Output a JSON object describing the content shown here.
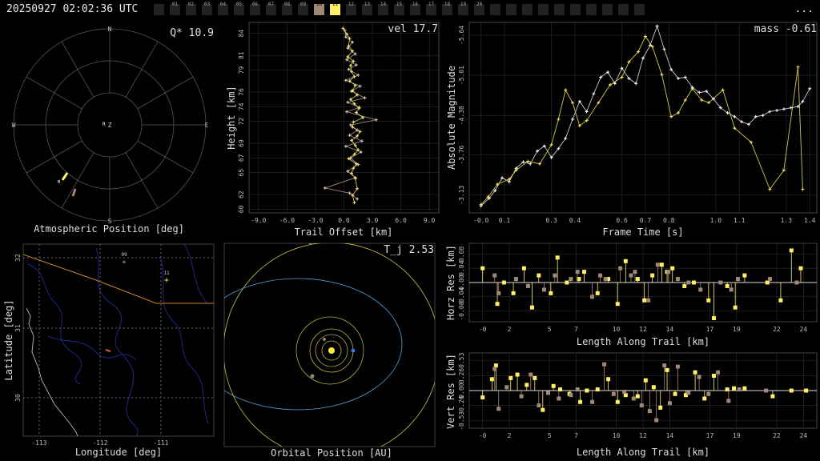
{
  "header": {
    "timestamp": "20250927 02:02:36 UTC",
    "menu_label": "...",
    "cameras": [
      "",
      "01",
      "02",
      "03",
      "04",
      "05",
      "06",
      "07",
      "08",
      "09",
      "10",
      "11",
      "12",
      "13",
      "14",
      "15",
      "16",
      "17",
      "18",
      "19",
      "20",
      "",
      "",
      "",
      "",
      "",
      "",
      "",
      "",
      "",
      ""
    ],
    "active_camera": "11",
    "hit_camera": "10"
  },
  "colors": {
    "accent": "#ffee66",
    "secondary": "#a08878",
    "grid": "#333",
    "axis": "#888",
    "text": "#dddddd"
  },
  "polar": {
    "label": "Atmospheric Position [deg]",
    "value_label": "Q* 10.9",
    "compass": {
      "n": "N",
      "s": "S",
      "e": "E",
      "w": "W",
      "z": "Z",
      "r": "R",
      "m": "M"
    }
  },
  "height": {
    "label": "Trail Offset [km]",
    "ylabel": "Height [km]",
    "value_label": "vel 17.7",
    "xticks": [
      "-9.0",
      "-6.0",
      "-3.0",
      "0.0",
      "3.0",
      "6.0",
      "9.0"
    ],
    "yticks": [
      "60",
      "62",
      "65",
      "67",
      "69",
      "72",
      "74",
      "76",
      "79",
      "81",
      "84"
    ]
  },
  "light": {
    "label": "Frame Time [s]",
    "ylabel": "Absolute Magnitude",
    "value_label": "mass -0.61",
    "xticks": [
      "-0.0",
      "0.1",
      "0.3",
      "0.4",
      "0.6",
      "0.7",
      "0.8",
      "1.0",
      "1.1",
      "1.3",
      "1.4"
    ],
    "yticks": [
      "-5.64",
      "-5.01",
      "-4.38",
      "-3.76",
      "-3.13"
    ]
  },
  "map": {
    "label": "Longitude [deg]",
    "ylabel": "Latitude [deg]",
    "xticks": [
      "-113",
      "-112",
      "-111"
    ],
    "yticks": [
      "32",
      "31",
      "30"
    ],
    "cams": [
      "09",
      "11"
    ]
  },
  "orbit": {
    "label": "Orbital Position [AU]",
    "value_label": "T_j 2.53"
  },
  "horz": {
    "label": "Length Along Trail [km]",
    "ylabel": "Horz Res [km]",
    "yticks": [
      "0.08",
      "0.04",
      "0.00",
      "-0.04",
      "-0.08"
    ]
  },
  "vert": {
    "label": "Length Along Trail [km]",
    "ylabel": "Vert Res [km]",
    "yticks": [
      "0.53",
      "0.26",
      "0.00",
      "-0.26",
      "-0.53"
    ]
  },
  "residual_xticks": [
    "-0",
    "2",
    "5",
    "7",
    "10",
    "12",
    "14",
    "17",
    "19",
    "22",
    "24"
  ],
  "chart_data": [
    {
      "type": "scatter",
      "title": "",
      "value_label": "vel 17.7",
      "xlabel": "Trail Offset [km]",
      "ylabel": "Height [km]",
      "xlim": [
        -10,
        10
      ],
      "ylim": [
        59.5,
        85.5
      ],
      "series": [
        {
          "x": [
            -0.1,
            0.3,
            0.6,
            0.5,
            0.9,
            0.4,
            1.0,
            0.7,
            0.8,
            1.1,
            0.6,
            1.2,
            0.9,
            1.4,
            0.7,
            1.1,
            1.6,
            1.3,
            2.0,
            1.0,
            0.9,
            1.7,
            1.4,
            0.8,
            1.2,
            1.5,
            1.1,
            0.5,
            1.3,
            1.0,
            0.8,
            1.2,
            1.4,
            0.9,
            1.1
          ],
          "y": [
            84.7,
            83.9,
            83.3,
            82.3,
            81.6,
            80.8,
            80.2,
            79.6,
            78.8,
            78.1,
            77.5,
            76.9,
            76.2,
            75.6,
            75.0,
            74.4,
            73.8,
            73.2,
            72.5,
            71.9,
            71.2,
            70.6,
            70.0,
            69.4,
            68.7,
            68.1,
            67.5,
            66.9,
            66.2,
            65.6,
            64.9,
            64.2,
            62.8,
            61.9,
            60.9
          ]
        },
        {
          "x": [
            0.1,
            0.2,
            0.9,
            0.4,
            1.2,
            0.3,
            1.3,
            0.5,
            1.5,
            0.2,
            1.7,
            0.8,
            2.2,
            0.4,
            1.6,
            0.3,
            3.4,
            0.7,
            1.4,
            0.6,
            1.9,
            0.2,
            1.8,
            0.7,
            1.5,
            0.4,
            1.2,
            -2.0,
            0.6,
            1.4
          ],
          "y": [
            84.4,
            83.5,
            82.8,
            82.0,
            81.2,
            80.4,
            79.7,
            79.1,
            78.3,
            77.6,
            76.8,
            76.1,
            75.2,
            74.6,
            73.9,
            73.3,
            72.2,
            71.5,
            70.8,
            70.1,
            69.3,
            68.6,
            67.8,
            67.0,
            66.1,
            65.2,
            64.3,
            62.9,
            62.2,
            61.4
          ]
        }
      ]
    },
    {
      "type": "line",
      "title": "",
      "value_label": "mass -0.61",
      "xlabel": "Frame Time [s]",
      "ylabel": "Absolute Magnitude",
      "xlim": [
        -0.05,
        1.43
      ],
      "ylim": [
        -2.85,
        -5.84
      ],
      "series": [
        {
          "x": [
            0,
            0.035,
            0.06,
            0.09,
            0.12,
            0.15,
            0.18,
            0.21,
            0.24,
            0.27,
            0.3,
            0.33,
            0.36,
            0.39,
            0.42,
            0.45,
            0.48,
            0.51,
            0.54,
            0.57,
            0.6,
            0.63,
            0.66,
            0.69,
            0.72,
            0.75,
            0.78,
            0.81,
            0.84,
            0.87,
            0.9,
            0.93,
            0.96,
            0.99,
            1.02,
            1.05,
            1.08,
            1.11,
            1.14,
            1.17,
            1.2,
            1.23,
            1.26,
            1.29,
            1.32,
            1.35,
            1.37,
            1.4
          ],
          "y": [
            -2.96,
            -3.08,
            -3.2,
            -3.4,
            -3.34,
            -3.55,
            -3.65,
            -3.62,
            -3.82,
            -3.9,
            -3.72,
            -3.86,
            -4.02,
            -4.32,
            -4.6,
            -4.44,
            -4.72,
            -4.98,
            -5.06,
            -4.88,
            -5.12,
            -4.96,
            -4.88,
            -5.28,
            -5.48,
            -5.78,
            -5.42,
            -5.1,
            -4.96,
            -4.98,
            -4.82,
            -4.74,
            -4.76,
            -4.64,
            -4.5,
            -4.42,
            -4.36,
            -4.28,
            -4.24,
            -4.36,
            -4.38,
            -4.44,
            -4.46,
            -4.48,
            -4.5,
            -4.52,
            -4.6,
            -4.8
          ]
        },
        {
          "x": [
            0,
            0.03,
            0.07,
            0.12,
            0.15,
            0.2,
            0.25,
            0.3,
            0.33,
            0.36,
            0.39,
            0.42,
            0.45,
            0.5,
            0.55,
            0.6,
            0.63,
            0.67,
            0.7,
            0.73,
            0.77,
            0.81,
            0.84,
            0.87,
            0.9,
            0.94,
            0.97,
            1.03,
            1.08,
            1.15,
            1.23,
            1.29,
            1.35,
            1.37
          ],
          "y": [
            -2.98,
            -3.1,
            -3.3,
            -3.38,
            -3.52,
            -3.66,
            -3.62,
            -3.92,
            -4.32,
            -4.78,
            -4.58,
            -4.22,
            -4.3,
            -4.58,
            -4.86,
            -4.98,
            -5.22,
            -5.38,
            -5.62,
            -5.46,
            -5.02,
            -4.36,
            -4.42,
            -4.62,
            -4.8,
            -4.62,
            -4.58,
            -4.78,
            -4.18,
            -3.96,
            -3.22,
            -3.52,
            -5.14,
            -3.22
          ]
        }
      ]
    },
    {
      "type": "scatter",
      "title": "",
      "xlabel": "Length Along Trail [km]",
      "ylabel": "Horz Res [km]",
      "xlim": [
        -1,
        25
      ],
      "ylim": [
        -0.11,
        0.11
      ],
      "series": [
        {
          "x": [
            0,
            1.1,
            1.6,
            2.3,
            3.1,
            3.7,
            4.2,
            5.1,
            5.6,
            6.3,
            7.2,
            7.6,
            8.6,
            9.4,
            10.1,
            10.7,
            11.6,
            12.1,
            12.7,
            13.4,
            13.8,
            14.2,
            15.1,
            15.8,
            16.9,
            17.3,
            18.3,
            18.9,
            19.6,
            21.3,
            22.3,
            23.1,
            23.8
          ],
          "y": [
            0.04,
            -0.06,
            0.0,
            -0.03,
            0.04,
            -0.07,
            0.02,
            -0.03,
            0.07,
            0.0,
            0.01,
            0.03,
            -0.03,
            0.01,
            -0.06,
            0.06,
            0.01,
            -0.05,
            0.02,
            0.05,
            0.03,
            0.04,
            -0.01,
            0.0,
            -0.05,
            -0.1,
            -0.01,
            -0.07,
            0.02,
            0.0,
            -0.05,
            0.09,
            0.04
          ]
        },
        {
          "x": [
            0.9,
            1.2,
            2.5,
            3.4,
            4.6,
            5.4,
            6.6,
            7.1,
            8.2,
            8.8,
            9.2,
            10.3,
            11.1,
            11.4,
            12.4,
            13.1,
            13.9,
            14.6,
            15.4,
            16.3,
            17.8,
            18.6,
            19.1,
            21.5,
            23.5
          ],
          "y": [
            0.02,
            -0.03,
            0.01,
            -0.01,
            -0.02,
            0.02,
            0.01,
            0.03,
            -0.04,
            0.02,
            0.01,
            0.04,
            0.02,
            0.03,
            -0.05,
            0.05,
            0.03,
            0.01,
            0.0,
            -0.02,
            0.0,
            -0.02,
            0.01,
            0.01,
            0.0
          ]
        }
      ]
    },
    {
      "type": "scatter",
      "title": "",
      "xlabel": "Length Along Trail [km]",
      "ylabel": "Vert Res [km]",
      "xlim": [
        -1,
        25
      ],
      "ylim": [
        -0.66,
        0.66
      ],
      "series": [
        {
          "x": [
            0,
            0.7,
            1.0,
            2.1,
            2.6,
            3.3,
            3.9,
            4.5,
            5.3,
            5.8,
            6.5,
            7.3,
            7.8,
            8.6,
            9.4,
            10.1,
            10.7,
            11.6,
            12.2,
            12.8,
            13.3,
            13.8,
            14.4,
            15.2,
            15.9,
            16.6,
            17.3,
            18.3,
            18.8,
            19.6,
            21.7,
            23.1,
            24.2
          ],
          "y": [
            -0.12,
            0.2,
            0.44,
            0.22,
            0.28,
            0.1,
            0.22,
            -0.34,
            0.08,
            0.02,
            -0.06,
            -0.2,
            0.0,
            0.02,
            0.2,
            -0.2,
            -0.08,
            -0.1,
            0.18,
            0.06,
            -0.3,
            0.36,
            -0.06,
            -0.08,
            0.32,
            -0.14,
            0.26,
            0.02,
            0.04,
            0.04,
            -0.1,
            0.0,
            0.0
          ]
        },
        {
          "x": [
            0.9,
            1.2,
            1.8,
            2.9,
            3.6,
            4.2,
            4.9,
            5.7,
            6.6,
            7.1,
            8.2,
            9.1,
            9.8,
            10.6,
            11.3,
            11.9,
            12.5,
            13.0,
            13.6,
            14.0,
            14.6,
            15.4,
            16.2,
            16.9,
            17.6,
            18.4,
            19.2,
            21.2
          ],
          "y": [
            0.38,
            -0.32,
            0.06,
            -0.1,
            0.28,
            -0.26,
            -0.04,
            -0.14,
            -0.08,
            0.02,
            -0.2,
            0.46,
            -0.06,
            -0.02,
            -0.14,
            -0.26,
            -0.36,
            -0.52,
            0.44,
            -0.22,
            0.42,
            -0.04,
            0.24,
            -0.06,
            0.32,
            -0.18,
            0.02,
            0.0
          ]
        }
      ]
    }
  ]
}
